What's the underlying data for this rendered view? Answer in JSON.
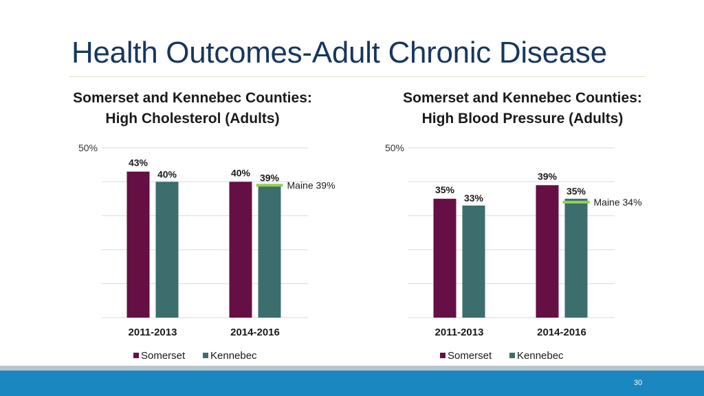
{
  "slide": {
    "title": "Health Outcomes-Adult Chronic Disease",
    "page_number": "30"
  },
  "colors": {
    "somerset": "#650f44",
    "kennebec": "#3b6e6d",
    "maine_line": "#92d050",
    "gridline": "#d9d9d9",
    "footer": "#1b87c1"
  },
  "chart_data": [
    {
      "type": "bar",
      "title_line1": "Somerset and Kennebec Counties:",
      "title_line2": "High Cholesterol (Adults)",
      "categories": [
        "2011-2013",
        "2014-2016"
      ],
      "series": [
        {
          "name": "Somerset",
          "values": [
            43,
            40
          ],
          "labels": [
            "43%",
            "40%"
          ]
        },
        {
          "name": "Kennebec",
          "values": [
            40,
            39
          ],
          "labels": [
            "40%",
            "39%"
          ]
        }
      ],
      "ylim": [
        0,
        50
      ],
      "ytick_label": "50%",
      "reference": {
        "value": 39,
        "label": "Maine 39%",
        "category": "2014-2016",
        "series": "Kennebec"
      },
      "legend": "bottom",
      "grid": true
    },
    {
      "type": "bar",
      "title_line1": "Somerset and Kennebec Counties:",
      "title_line2": "High Blood Pressure (Adults)",
      "categories": [
        "2011-2013",
        "2014-2016"
      ],
      "series": [
        {
          "name": "Somerset",
          "values": [
            35,
            39
          ],
          "labels": [
            "35%",
            "39%"
          ]
        },
        {
          "name": "Kennebec",
          "values": [
            33,
            35
          ],
          "labels": [
            "33%",
            "35%"
          ]
        }
      ],
      "ylim": [
        0,
        50
      ],
      "ytick_label": "50%",
      "reference": {
        "value": 34,
        "label": "Maine 34%",
        "category": "2014-2016",
        "series": "Kennebec"
      },
      "legend": "bottom",
      "grid": true
    }
  ]
}
